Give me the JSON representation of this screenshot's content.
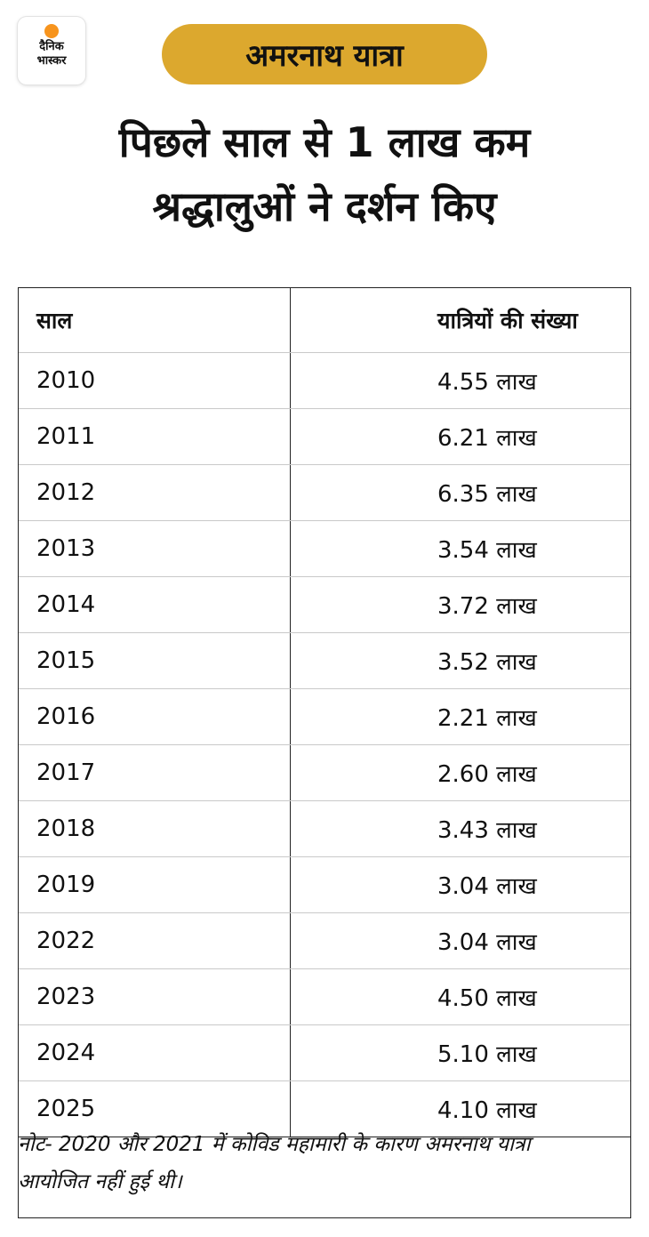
{
  "brand": {
    "logo_line1": "दैनिक",
    "logo_line2": "भास्कर",
    "logo_dot_color": "#f7941d"
  },
  "tag": {
    "label": "अमरनाथ यात्रा",
    "color": "#dca82e"
  },
  "headline": {
    "line1": "पिछले साल से 1 लाख कम",
    "line2": "श्रद्धालुओं ने दर्शन किए"
  },
  "chart_data": {
    "type": "table",
    "columns": [
      "साल",
      "यात्रियों की संख्या"
    ],
    "unit": "लाख",
    "rows": [
      {
        "year": "2010",
        "pilgrims": "4.55 लाख",
        "value": 4.55
      },
      {
        "year": "2011",
        "pilgrims": "6.21 लाख",
        "value": 6.21
      },
      {
        "year": "2012",
        "pilgrims": "6.35 लाख",
        "value": 6.35
      },
      {
        "year": "2013",
        "pilgrims": "3.54 लाख",
        "value": 3.54
      },
      {
        "year": "2014",
        "pilgrims": "3.72 लाख",
        "value": 3.72
      },
      {
        "year": "2015",
        "pilgrims": "3.52 लाख",
        "value": 3.52
      },
      {
        "year": "2016",
        "pilgrims": "2.21 लाख",
        "value": 2.21
      },
      {
        "year": "2017",
        "pilgrims": "2.60 लाख",
        "value": 2.6
      },
      {
        "year": "2018",
        "pilgrims": "3.43 लाख",
        "value": 3.43
      },
      {
        "year": "2019",
        "pilgrims": "3.04 लाख",
        "value": 3.04
      },
      {
        "year": "2022",
        "pilgrims": "3.04 लाख",
        "value": 3.04
      },
      {
        "year": "2023",
        "pilgrims": "4.50 लाख",
        "value": 4.5
      },
      {
        "year": "2024",
        "pilgrims": "5.10 लाख",
        "value": 5.1
      },
      {
        "year": "2025",
        "pilgrims": "4.10 लाख",
        "value": 4.1
      }
    ],
    "note": "नोट- 2020 और 2021 में कोविड महामारी के कारण अमरनाथ यात्रा आयोजित नहीं हुई थी।"
  }
}
